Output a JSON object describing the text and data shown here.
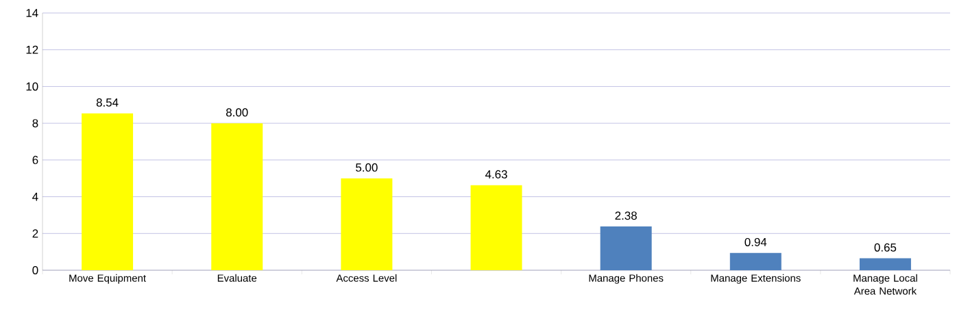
{
  "chart_data": {
    "type": "bar",
    "categories": [
      "Move Equipment",
      "Evaluate",
      "Access Level",
      null,
      "Manage Phones",
      "Manage Extensions",
      "Manage Local Area Network"
    ],
    "values": [
      8.54,
      8.0,
      5.0,
      4.63,
      2.38,
      0.94,
      0.65
    ],
    "value_labels": [
      "8.54",
      "8.00",
      "5.00",
      "4.63",
      "2.38",
      "0.94",
      "0.65"
    ],
    "colors": [
      "#ffff00",
      "#ffff00",
      "#ffff00",
      "#ffff00",
      "#4f81bd",
      "#4f81bd",
      "#4f81bd"
    ],
    "ylim": [
      0,
      14
    ],
    "yticks": [
      0,
      2,
      4,
      6,
      8,
      10,
      12,
      14
    ],
    "grid": "y"
  }
}
